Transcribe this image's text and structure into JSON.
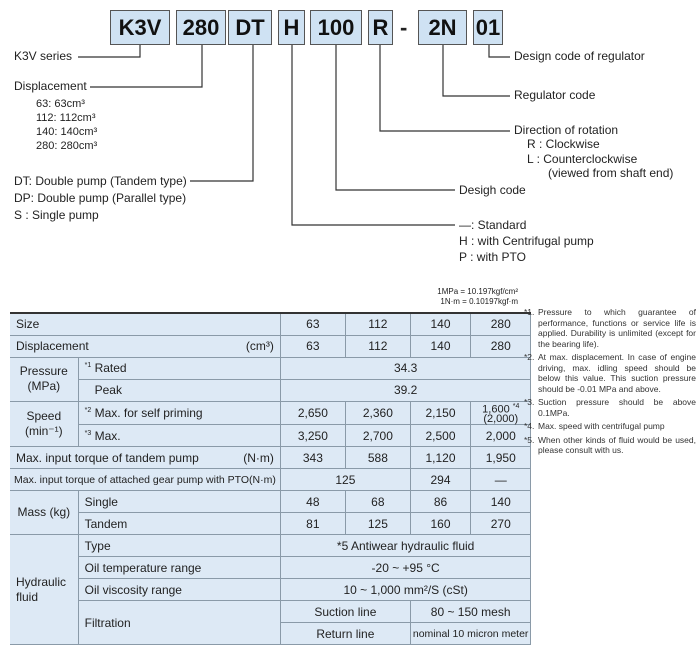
{
  "code_boxes": [
    "K3V",
    "280",
    "DT",
    "H",
    "100",
    "R",
    "-",
    "2N",
    "01"
  ],
  "labels": {
    "series": "K3V series",
    "displacement": "Displacement",
    "disp_options": [
      "63:  63cm³",
      "112: 112cm³",
      "140: 140cm³",
      "280: 280cm³"
    ],
    "pump_types": [
      "DT: Double pump (Tandem type)",
      "DP: Double pump (Parallel type)",
      "S  : Single pump"
    ],
    "regulator_design": "Design code of regulator",
    "regulator_code": "Regulator code",
    "rotation": "Direction of rotation",
    "rotation_options": [
      "R : Clockwise",
      "L : Counterclockwise",
      "(viewed from shaft end)"
    ],
    "design_code": "Desigh code",
    "options": [
      "—: Standard",
      "H : with Centrifugal pump",
      "P : with PTO"
    ]
  },
  "units_note": [
    "1MPa = 10.197kgf/cm²",
    "1N·m = 0.10197kgf·m"
  ],
  "table": {
    "size": {
      "label": "Size",
      "values": [
        "63",
        "112",
        "140",
        "280"
      ]
    },
    "displacement": {
      "label": "Displacement",
      "unit": "(cm³)",
      "values": [
        "63",
        "112",
        "140",
        "280"
      ]
    },
    "pressure": {
      "label": "Pressure (MPa)",
      "rated_mark": "*1",
      "rated": "Rated",
      "rated_value": "34.3",
      "peak": "Peak",
      "peak_value": "39.2"
    },
    "speed": {
      "label": "Speed (min⁻¹)",
      "self_mark": "*2",
      "self": "Max. for self priming",
      "self_values": [
        "2,650",
        "2,360",
        "2,150"
      ],
      "self_last": "1,600",
      "self_last_paren": "(2,000)",
      "self_last_mark": "*4",
      "max_mark": "*3",
      "max": "Max.",
      "max_values": [
        "3,250",
        "2,700",
        "2,500",
        "2,000"
      ]
    },
    "tandem_torque": {
      "label": "Max. input torque of tandem pump",
      "unit": "(N·m)",
      "values": [
        "343",
        "588",
        "1,120",
        "1,950"
      ]
    },
    "pto_torque": {
      "label": "Max. input torque of attached gear pump with PTO",
      "unit": "(N·m)",
      "values": [
        "125",
        "294",
        "—"
      ]
    },
    "mass": {
      "label": "Mass (kg)",
      "single": "Single",
      "single_values": [
        "48",
        "68",
        "86",
        "140"
      ],
      "tandem": "Tandem",
      "tandem_values": [
        "81",
        "125",
        "160",
        "270"
      ]
    },
    "fluid": {
      "label": "Hydraulic fluid",
      "type": "Type",
      "type_value": "*5 Antiwear hydraulic fluid",
      "temp": "Oil temperature range",
      "temp_value": "-20 ~ +95 °C",
      "visc": "Oil viscosity range",
      "visc_value": "10 ~ 1,000 mm²/S (cSt)",
      "filtration": "Filtration",
      "suction": "Suction line",
      "suction_value": "80 ~ 150 mesh",
      "return": "Return line",
      "return_value": "nominal 10 micron meter"
    }
  },
  "notes": [
    {
      "mark": "*1.",
      "text": "Pressure to which guarantee of performance, functions or service life is applied. Durability is unlimited (except for the bearing life)."
    },
    {
      "mark": "*2.",
      "text": "At max. displacement. In case of engine driving, max. idling speed should be below this value. This suction pressure should be -0.01 MPa and above."
    },
    {
      "mark": "*3.",
      "text": "Suction pressure should be above 0.1MPa."
    },
    {
      "mark": "*4.",
      "text": "Max. speed with centrifugal pump"
    },
    {
      "mark": "*5.",
      "text": "When other kinds of fluid would be used, please consult with us."
    }
  ]
}
